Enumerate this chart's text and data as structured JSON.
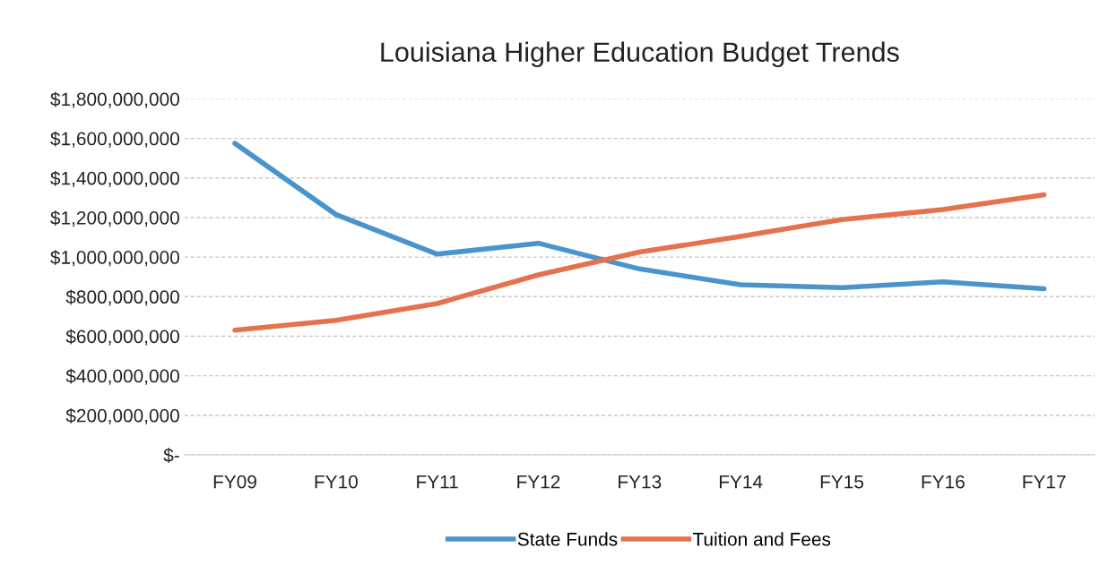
{
  "chart_data": {
    "type": "line",
    "title": "Louisiana Higher Education Budget Trends",
    "categories": [
      "FY09",
      "FY10",
      "FY11",
      "FY12",
      "FY13",
      "FY14",
      "FY15",
      "FY16",
      "FY17"
    ],
    "series": [
      {
        "name": "State Funds",
        "color": "#4a94cc",
        "values": [
          1575000000,
          1215000000,
          1015000000,
          1070000000,
          940000000,
          860000000,
          845000000,
          875000000,
          840000000
        ]
      },
      {
        "name": "Tuition and Fees",
        "color": "#e5714f",
        "values": [
          630000000,
          680000000,
          765000000,
          910000000,
          1025000000,
          1105000000,
          1190000000,
          1240000000,
          1315000000
        ]
      }
    ],
    "ylim": [
      0,
      1800000000
    ],
    "yticks": [
      {
        "value": 0,
        "label": "$-"
      },
      {
        "value": 200000000,
        "label": "$200,000,000"
      },
      {
        "value": 400000000,
        "label": "$400,000,000"
      },
      {
        "value": 600000000,
        "label": "$600,000,000"
      },
      {
        "value": 800000000,
        "label": "$800,000,000"
      },
      {
        "value": 1000000000,
        "label": "$1,000,000,000"
      },
      {
        "value": 1200000000,
        "label": "$1,200,000,000"
      },
      {
        "value": 1400000000,
        "label": "$1,400,000,000"
      },
      {
        "value": 1600000000,
        "label": "$1,600,000,000"
      },
      {
        "value": 1800000000,
        "label": "$1,800,000,000"
      }
    ],
    "grid": "y",
    "legend": "bottom",
    "marker": "none",
    "line_style": "solid"
  }
}
